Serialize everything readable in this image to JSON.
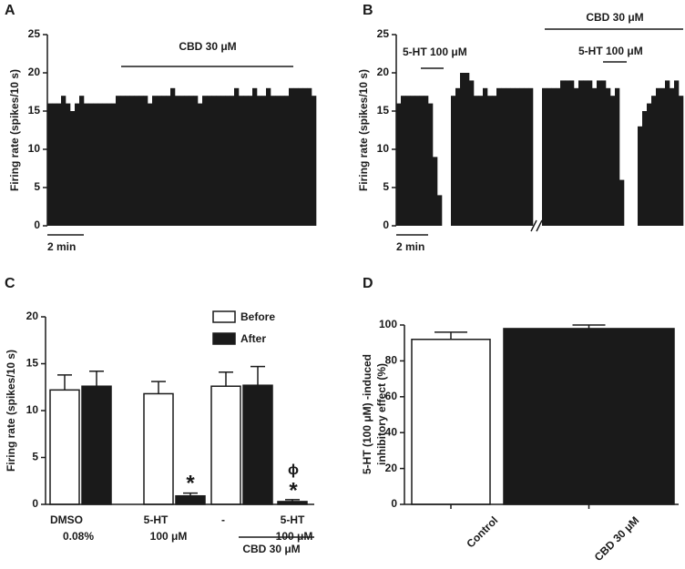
{
  "chart_data": [
    {
      "type": "trace",
      "panel": "A",
      "ylabel": "Firing rate (spikes/10 s)",
      "color": "#1a1a1a",
      "ylim": [
        0,
        25
      ],
      "yticks": [
        0,
        5,
        10,
        15,
        20,
        25
      ],
      "annotations": [
        "CBD 30 μM"
      ],
      "scale_bar": "2 min",
      "values": [
        16,
        16,
        16,
        17,
        16,
        15,
        16,
        17,
        16,
        16,
        16,
        16,
        16,
        16,
        16,
        17,
        17,
        17,
        17,
        17,
        17,
        17,
        16,
        17,
        17,
        17,
        17,
        18,
        17,
        17,
        17,
        17,
        17,
        16,
        17,
        17,
        17,
        17,
        17,
        17,
        17,
        18,
        17,
        17,
        17,
        18,
        17,
        17,
        18,
        17,
        17,
        17,
        17,
        18,
        18,
        18,
        18,
        18,
        17
      ]
    },
    {
      "type": "trace",
      "panel": "B",
      "ylabel": "Firing rate (spikes/10 s)",
      "color": "#1a1a1a",
      "ylim": [
        0,
        25
      ],
      "yticks": [
        0,
        5,
        10,
        15,
        20,
        25
      ],
      "annotations": [
        "5-HT 100 μM",
        "CBD 30 μM",
        "5-HT 100 μM"
      ],
      "scale_bar": "2 min",
      "values": [
        16,
        17,
        17,
        17,
        17,
        17,
        17,
        16,
        9,
        4,
        0,
        0,
        17,
        18,
        20,
        20,
        19,
        17,
        17,
        18,
        17,
        17,
        18,
        18,
        18,
        18,
        18,
        18,
        18,
        18,
        null,
        null,
        18,
        18,
        18,
        18,
        19,
        19,
        19,
        18,
        19,
        19,
        19,
        18,
        19,
        19,
        18,
        17,
        18,
        6,
        0,
        0,
        0,
        13,
        15,
        16,
        17,
        18,
        18,
        19,
        18,
        19,
        17
      ]
    },
    {
      "type": "grouped_bar",
      "panel": "C",
      "ylabel": "Firing rate (spikes/10 s)",
      "ylim": [
        0,
        20
      ],
      "yticks": [
        0,
        5,
        10,
        15,
        20
      ],
      "categories": [
        [
          "DMSO",
          "0.08%"
        ],
        [
          "5-HT",
          "100 μM"
        ],
        [
          "-"
        ],
        [
          "5-HT",
          "100 μM"
        ]
      ],
      "series": [
        {
          "name": "Before",
          "color": "#ffffff",
          "values": [
            12.2,
            11.8,
            12.6,
            null
          ],
          "errors": [
            1.6,
            1.3,
            1.5,
            null
          ]
        },
        {
          "name": "After",
          "color": "#1a1a1a",
          "values": [
            12.6,
            0.9,
            12.7,
            0.3
          ],
          "errors": [
            1.6,
            0.3,
            2.0,
            0.2
          ]
        }
      ],
      "annotations": [
        "*",
        "*",
        "ϕ",
        "CBD  30 μM"
      ]
    },
    {
      "type": "bar",
      "panel": "D",
      "ylabel": [
        "5-HT (100 μM) -induced",
        "inhibitory effect (%)"
      ],
      "ylim": [
        0,
        100
      ],
      "yticks": [
        0,
        20,
        40,
        60,
        80,
        100
      ],
      "categories": [
        "Control",
        "CBD 30 μM"
      ],
      "colors": [
        "#ffffff",
        "#1a1a1a"
      ],
      "values": [
        92,
        98
      ],
      "errors": [
        4,
        2
      ]
    }
  ]
}
